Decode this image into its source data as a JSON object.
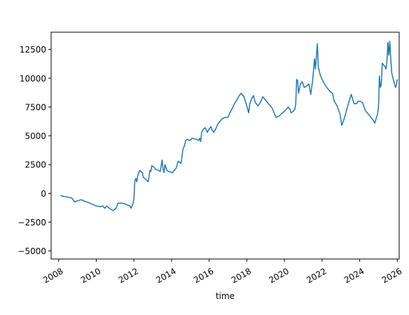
{
  "chart_data": {
    "type": "line",
    "title": "",
    "xlabel": "time",
    "ylabel": "",
    "xlim": [
      2007.6,
      2026.1
    ],
    "ylim": [
      -5700,
      14000
    ],
    "grid": false,
    "legend": "none",
    "x_ticks": [
      2008,
      2010,
      2012,
      2014,
      2016,
      2018,
      2020,
      2022,
      2024,
      2026
    ],
    "x_tick_labels": [
      "2008",
      "2010",
      "2012",
      "2014",
      "2016",
      "2018",
      "2020",
      "2022",
      "2024",
      "2026"
    ],
    "y_ticks": [
      -5000,
      -2500,
      0,
      2500,
      5000,
      7500,
      10000,
      12500
    ],
    "y_tick_labels": [
      "−5000",
      "−2500",
      "0",
      "2500",
      "5000",
      "7500",
      "10000",
      "12500"
    ],
    "series": [
      {
        "color": "#1f77b4",
        "points": [
          [
            2008.1,
            -200
          ],
          [
            2008.4,
            -300
          ],
          [
            2008.7,
            -400
          ],
          [
            2008.85,
            -750
          ],
          [
            2009.0,
            -650
          ],
          [
            2009.2,
            -550
          ],
          [
            2009.4,
            -700
          ],
          [
            2009.6,
            -800
          ],
          [
            2009.8,
            -950
          ],
          [
            2010.0,
            -1100
          ],
          [
            2010.2,
            -1150
          ],
          [
            2010.35,
            -1100
          ],
          [
            2010.45,
            -1300
          ],
          [
            2010.55,
            -1100
          ],
          [
            2010.7,
            -1300
          ],
          [
            2010.9,
            -1500
          ],
          [
            2011.05,
            -1300
          ],
          [
            2011.15,
            -850
          ],
          [
            2011.35,
            -850
          ],
          [
            2011.5,
            -900
          ],
          [
            2011.65,
            -1000
          ],
          [
            2011.8,
            -1100
          ],
          [
            2011.85,
            -1300
          ],
          [
            2011.95,
            -900
          ],
          [
            2012.0,
            -500
          ],
          [
            2012.05,
            1100
          ],
          [
            2012.1,
            1300
          ],
          [
            2012.15,
            1000
          ],
          [
            2012.2,
            1500
          ],
          [
            2012.3,
            2000
          ],
          [
            2012.45,
            1800
          ],
          [
            2012.5,
            1400
          ],
          [
            2012.65,
            1200
          ],
          [
            2012.75,
            1000
          ],
          [
            2012.8,
            1400
          ],
          [
            2012.85,
            2000
          ],
          [
            2012.9,
            1900
          ],
          [
            2012.95,
            2400
          ],
          [
            2013.05,
            2300
          ],
          [
            2013.15,
            2100
          ],
          [
            2013.3,
            2000
          ],
          [
            2013.4,
            1900
          ],
          [
            2013.5,
            2900
          ],
          [
            2013.55,
            2100
          ],
          [
            2013.6,
            1800
          ],
          [
            2013.65,
            2500
          ],
          [
            2013.75,
            2000
          ],
          [
            2013.85,
            1900
          ],
          [
            2014.05,
            1800
          ],
          [
            2014.25,
            2200
          ],
          [
            2014.35,
            2800
          ],
          [
            2014.5,
            2600
          ],
          [
            2014.55,
            3100
          ],
          [
            2014.6,
            3800
          ],
          [
            2014.7,
            4200
          ],
          [
            2014.75,
            4600
          ],
          [
            2014.85,
            4700
          ],
          [
            2014.95,
            4600
          ],
          [
            2015.05,
            4700
          ],
          [
            2015.1,
            4800
          ],
          [
            2015.3,
            4700
          ],
          [
            2015.45,
            4600
          ],
          [
            2015.5,
            4800
          ],
          [
            2015.55,
            4500
          ],
          [
            2015.6,
            5300
          ],
          [
            2015.7,
            5600
          ],
          [
            2015.8,
            5700
          ],
          [
            2015.9,
            5300
          ],
          [
            2016.0,
            5600
          ],
          [
            2016.1,
            5800
          ],
          [
            2016.15,
            5500
          ],
          [
            2016.25,
            5300
          ],
          [
            2016.35,
            5600
          ],
          [
            2016.45,
            6000
          ],
          [
            2016.55,
            6200
          ],
          [
            2016.7,
            6500
          ],
          [
            2016.85,
            6600
          ],
          [
            2017.0,
            6600
          ],
          [
            2017.1,
            7000
          ],
          [
            2017.2,
            7300
          ],
          [
            2017.35,
            7800
          ],
          [
            2017.5,
            8200
          ],
          [
            2017.6,
            8500
          ],
          [
            2017.7,
            8700
          ],
          [
            2017.85,
            8400
          ],
          [
            2018.0,
            7600
          ],
          [
            2018.1,
            7000
          ],
          [
            2018.15,
            7700
          ],
          [
            2018.25,
            8200
          ],
          [
            2018.35,
            8500
          ],
          [
            2018.45,
            7900
          ],
          [
            2018.6,
            7600
          ],
          [
            2018.75,
            8000
          ],
          [
            2018.85,
            8400
          ],
          [
            2019.05,
            8000
          ],
          [
            2019.2,
            7700
          ],
          [
            2019.35,
            7400
          ],
          [
            2019.45,
            7000
          ],
          [
            2019.55,
            6600
          ],
          [
            2019.7,
            6700
          ],
          [
            2019.9,
            7000
          ],
          [
            2020.05,
            7200
          ],
          [
            2020.2,
            7500
          ],
          [
            2020.3,
            7300
          ],
          [
            2020.35,
            7000
          ],
          [
            2020.45,
            7100
          ],
          [
            2020.55,
            7300
          ],
          [
            2020.6,
            7700
          ],
          [
            2020.65,
            9900
          ],
          [
            2020.7,
            9800
          ],
          [
            2020.75,
            8700
          ],
          [
            2020.85,
            9500
          ],
          [
            2020.95,
            9700
          ],
          [
            2021.05,
            9200
          ],
          [
            2021.15,
            9300
          ],
          [
            2021.3,
            9500
          ],
          [
            2021.4,
            8600
          ],
          [
            2021.5,
            9800
          ],
          [
            2021.6,
            11700
          ],
          [
            2021.65,
            10800
          ],
          [
            2021.75,
            13000
          ],
          [
            2021.8,
            11000
          ],
          [
            2021.9,
            10300
          ],
          [
            2022.0,
            9900
          ],
          [
            2022.1,
            9600
          ],
          [
            2022.2,
            9300
          ],
          [
            2022.4,
            8900
          ],
          [
            2022.55,
            8700
          ],
          [
            2022.65,
            8000
          ],
          [
            2022.8,
            7600
          ],
          [
            2022.95,
            6900
          ],
          [
            2023.05,
            5900
          ],
          [
            2023.2,
            6600
          ],
          [
            2023.4,
            7800
          ],
          [
            2023.55,
            8600
          ],
          [
            2023.7,
            7800
          ],
          [
            2023.85,
            7800
          ],
          [
            2023.9,
            8000
          ],
          [
            2024.0,
            8000
          ],
          [
            2024.15,
            7900
          ],
          [
            2024.3,
            7200
          ],
          [
            2024.5,
            6800
          ],
          [
            2024.7,
            6400
          ],
          [
            2024.8,
            6100
          ],
          [
            2024.95,
            6900
          ],
          [
            2025.0,
            7500
          ],
          [
            2025.05,
            10200
          ],
          [
            2025.1,
            9200
          ],
          [
            2025.15,
            9500
          ],
          [
            2025.2,
            11300
          ],
          [
            2025.35,
            11000
          ],
          [
            2025.4,
            10800
          ],
          [
            2025.45,
            11500
          ],
          [
            2025.5,
            13100
          ],
          [
            2025.55,
            12000
          ],
          [
            2025.6,
            13200
          ],
          [
            2025.65,
            11800
          ],
          [
            2025.7,
            10500
          ],
          [
            2025.8,
            9800
          ],
          [
            2025.9,
            9200
          ],
          [
            2025.95,
            9400
          ],
          [
            2026.0,
            9900
          ]
        ]
      }
    ]
  }
}
